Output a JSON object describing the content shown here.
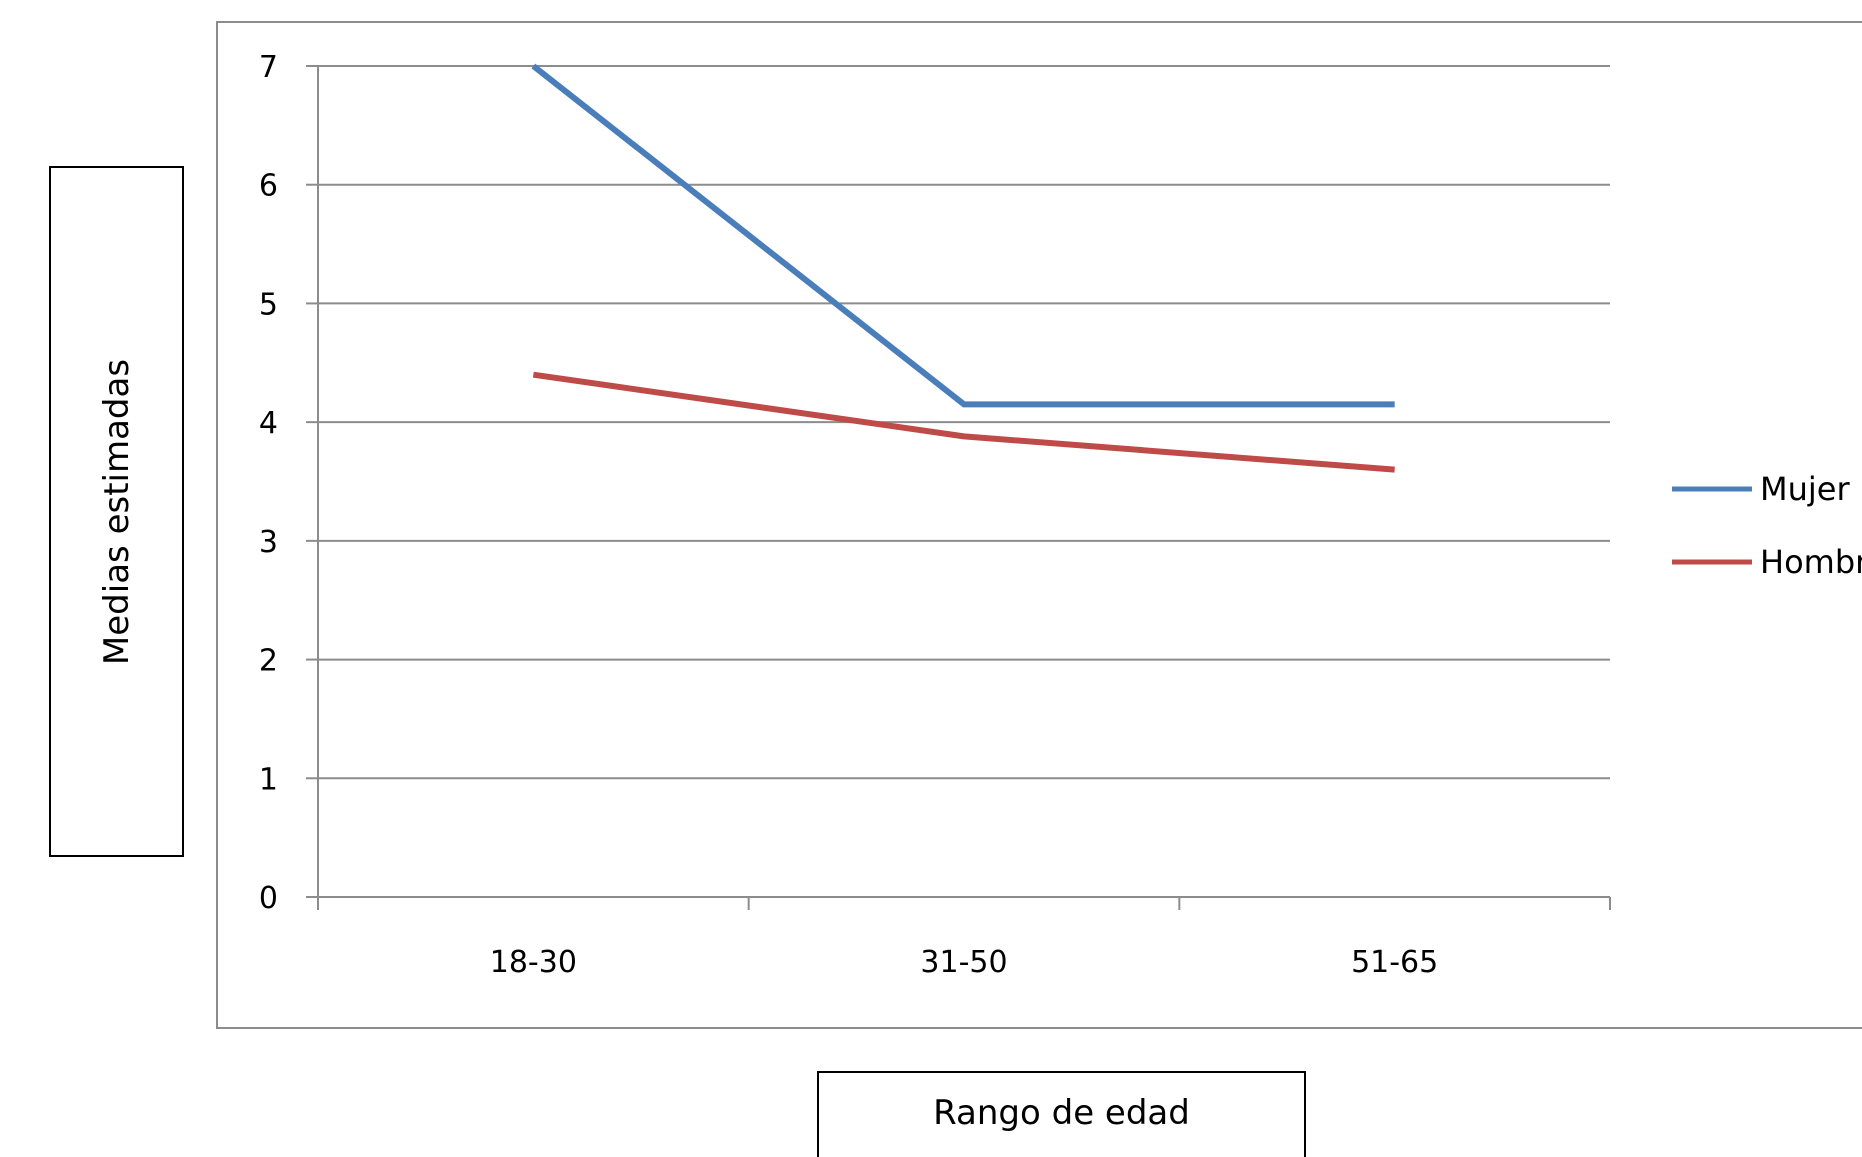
{
  "chart_data": {
    "type": "line",
    "title": "",
    "xlabel": "Rango de edad",
    "ylabel": "Medias estimadas",
    "categories": [
      "18-30",
      "31-50",
      "51-65"
    ],
    "ylim": [
      0,
      7
    ],
    "yticks": [
      "0",
      "1",
      "2",
      "3",
      "4",
      "5",
      "6",
      "7"
    ],
    "grid": true,
    "legend_position": "right",
    "series": [
      {
        "name": "Mujer",
        "color": "#4a7ebb",
        "values": [
          7.0,
          4.15,
          4.15
        ]
      },
      {
        "name": "Hombre",
        "color": "#be4b48",
        "values": [
          4.4,
          3.88,
          3.6
        ]
      }
    ]
  }
}
